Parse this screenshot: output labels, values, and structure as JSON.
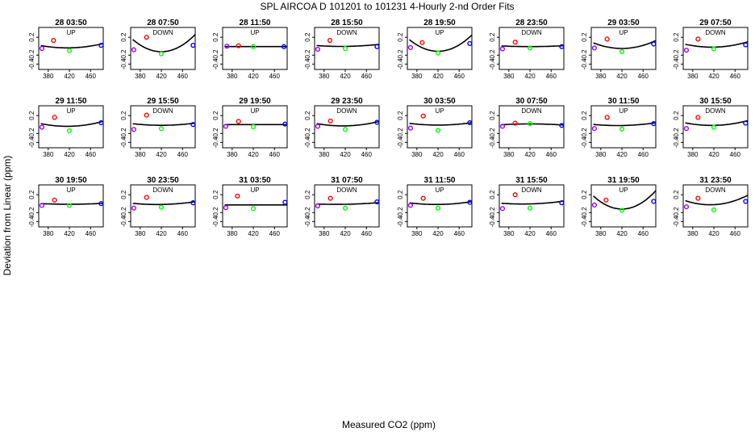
{
  "figure": {
    "title": "SPL   AIRCOA D    101201 to 101231   4-Hourly 2-nd Order Fits",
    "xlabel": "Measured CO2 (ppm)",
    "ylabel": "Deviation from Linear (ppm)"
  },
  "colors": {
    "point_1": "#9a00ff",
    "point_2": "#ff0000",
    "point_3": "#00ff00",
    "point_4": "#0000ff",
    "curve": "#000000"
  },
  "chart_data": {
    "type": "scatter",
    "x_ticks": [
      380,
      420,
      460
    ],
    "y_ticks": [
      0.2,
      -0.2,
      -0.4
    ],
    "y_tick_labels": [
      "0.2",
      "-0.2",
      "-0.4"
    ],
    "xlim": [
      362,
      484
    ],
    "ylim": [
      -0.52,
      0.42
    ],
    "grid": false,
    "panels": [
      {
        "title": "28 03:50",
        "dir": "UP",
        "points": [
          [
            368,
            -0.05
          ],
          [
            390,
            0.13
          ],
          [
            420,
            -0.1
          ],
          [
            480,
            0.02
          ]
        ],
        "curve": [
          -0.037,
          0.00018,
          0.0021
        ]
      },
      {
        "title": "28 07:50",
        "dir": "DOWN",
        "points": [
          [
            368,
            -0.08
          ],
          [
            392,
            0.2
          ],
          [
            420,
            -0.17
          ],
          [
            480,
            0.02
          ]
        ],
        "curve": [
          -0.123,
          0.0,
          0.0094
        ]
      },
      {
        "title": "28 11:50",
        "dir": "UP",
        "points": [
          [
            370,
            0.0
          ],
          [
            392,
            0.01
          ],
          [
            420,
            -0.01
          ],
          [
            478,
            -0.01
          ]
        ],
        "curve": [
          -0.009,
          0.0,
          0.0
        ]
      },
      {
        "title": "28 15:50",
        "dir": "DOWN",
        "points": [
          [
            368,
            -0.07
          ],
          [
            391,
            0.13
          ],
          [
            420,
            -0.05
          ],
          [
            480,
            -0.01
          ]
        ],
        "curve": [
          -0.004,
          0.00014,
          0.0009
        ]
      },
      {
        "title": "28 19:50",
        "dir": "UP",
        "points": [
          [
            368,
            -0.03
          ],
          [
            390,
            0.08
          ],
          [
            420,
            -0.15
          ],
          [
            480,
            0.06
          ]
        ],
        "curve": [
          -0.113,
          0.0,
          0.0089
        ]
      },
      {
        "title": "28 23:50",
        "dir": "DOWN",
        "points": [
          [
            368,
            -0.06
          ],
          [
            392,
            0.09
          ],
          [
            420,
            -0.04
          ],
          [
            480,
            -0.01
          ]
        ],
        "curve": [
          -0.009,
          0.0,
          0.0005
        ]
      },
      {
        "title": "29 03:50",
        "dir": "UP",
        "points": [
          [
            368,
            -0.04
          ],
          [
            392,
            0.16
          ],
          [
            420,
            -0.12
          ],
          [
            480,
            0.05
          ]
        ],
        "curve": [
          -0.05,
          0.0,
          0.0043
        ]
      },
      {
        "title": "29 07:50",
        "dir": "DOWN",
        "points": [
          [
            368,
            -0.09
          ],
          [
            390,
            0.16
          ],
          [
            420,
            -0.06
          ],
          [
            480,
            0.03
          ]
        ],
        "curve": [
          -0.021,
          0.0002,
          0.0026
        ]
      },
      {
        "title": "29 11:50",
        "dir": "UP",
        "points": [
          [
            368,
            -0.06
          ],
          [
            392,
            0.16
          ],
          [
            420,
            -0.14
          ],
          [
            480,
            0.04
          ]
        ],
        "curve": [
          -0.039,
          0.0002,
          0.0024
        ]
      },
      {
        "title": "29 15:50",
        "dir": "DOWN",
        "points": [
          [
            368,
            -0.11
          ],
          [
            392,
            0.21
          ],
          [
            420,
            -0.09
          ],
          [
            480,
            0.0
          ]
        ],
        "curve": [
          -0.017,
          0.0,
          0.0012
        ]
      },
      {
        "title": "29 19:50",
        "dir": "UP",
        "points": [
          [
            368,
            -0.04
          ],
          [
            392,
            0.07
          ],
          [
            420,
            -0.05
          ],
          [
            480,
            0.01
          ]
        ],
        "curve": [
          -0.002,
          0.0,
          0.0
        ]
      },
      {
        "title": "29 23:50",
        "dir": "DOWN",
        "points": [
          [
            368,
            -0.04
          ],
          [
            392,
            0.08
          ],
          [
            420,
            -0.11
          ],
          [
            480,
            0.05
          ]
        ],
        "curve": [
          -0.03,
          0.0002,
          0.0021
        ]
      },
      {
        "title": "30 03:50",
        "dir": "UP",
        "points": [
          [
            368,
            -0.08
          ],
          [
            392,
            0.19
          ],
          [
            420,
            -0.13
          ],
          [
            480,
            0.04
          ]
        ],
        "curve": [
          -0.012,
          0.0,
          0.0013
        ]
      },
      {
        "title": "30 07:50",
        "dir": "DOWN",
        "points": [
          [
            368,
            -0.04
          ],
          [
            392,
            0.03
          ],
          [
            420,
            0.02
          ],
          [
            480,
            -0.02
          ]
        ],
        "curve": [
          0.013,
          0.0,
          -0.0006
        ]
      },
      {
        "title": "30 11:50",
        "dir": "UP",
        "points": [
          [
            368,
            -0.09
          ],
          [
            392,
            0.16
          ],
          [
            420,
            -0.1
          ],
          [
            480,
            0.02
          ]
        ],
        "curve": [
          -0.022,
          0.0002,
          0.0012
        ]
      },
      {
        "title": "30 15:50",
        "dir": "DOWN",
        "points": [
          [
            368,
            -0.09
          ],
          [
            390,
            0.16
          ],
          [
            420,
            -0.06
          ],
          [
            480,
            0.03
          ]
        ],
        "curve": [
          -0.019,
          0.0002,
          0.0023
        ]
      },
      {
        "title": "30 19:50",
        "dir": "UP",
        "points": [
          [
            368,
            -0.04
          ],
          [
            392,
            0.08
          ],
          [
            420,
            -0.04
          ],
          [
            480,
            0.0
          ]
        ],
        "curve": [
          -0.013,
          0.0,
          0.0005
        ]
      },
      {
        "title": "30 23:50",
        "dir": "DOWN",
        "points": [
          [
            368,
            -0.1
          ],
          [
            392,
            0.14
          ],
          [
            420,
            -0.08
          ],
          [
            480,
            0.02
          ]
        ],
        "curve": [
          -0.018,
          0.0002,
          0.0012
        ]
      },
      {
        "title": "31 03:50",
        "dir": "UP",
        "points": [
          [
            368,
            -0.09
          ],
          [
            390,
            0.17
          ],
          [
            420,
            -0.11
          ],
          [
            480,
            0.03
          ]
        ],
        "curve": [
          -0.028,
          0.0,
          0.0
        ]
      },
      {
        "title": "31 07:50",
        "dir": "DOWN",
        "points": [
          [
            368,
            -0.05
          ],
          [
            392,
            0.12
          ],
          [
            420,
            -0.1
          ],
          [
            480,
            0.04
          ]
        ],
        "curve": [
          -0.014,
          0.0002,
          0.0006
        ]
      },
      {
        "title": "31 11:50",
        "dir": "UP",
        "points": [
          [
            368,
            -0.04
          ],
          [
            392,
            0.12
          ],
          [
            420,
            -0.1
          ],
          [
            480,
            0.03
          ]
        ],
        "curve": [
          -0.018,
          0.0001,
          0.0014
        ]
      },
      {
        "title": "31 15:50",
        "dir": "DOWN",
        "points": [
          [
            368,
            -0.11
          ],
          [
            392,
            0.2
          ],
          [
            420,
            -0.1
          ],
          [
            480,
            0.02
          ]
        ],
        "curve": [
          -0.006,
          0.0003,
          0.0011
        ]
      },
      {
        "title": "31 19:50",
        "dir": "UP",
        "points": [
          [
            368,
            -0.03
          ],
          [
            390,
            0.08
          ],
          [
            420,
            -0.15
          ],
          [
            480,
            0.05
          ]
        ],
        "curve": [
          -0.12,
          0.0,
          0.01
        ]
      },
      {
        "title": "31 23:50",
        "dir": "DOWN",
        "points": [
          [
            368,
            -0.07
          ],
          [
            390,
            0.12
          ],
          [
            420,
            -0.14
          ],
          [
            480,
            0.05
          ]
        ],
        "curve": [
          -0.023,
          0.0006,
          0.0042
        ]
      }
    ]
  }
}
